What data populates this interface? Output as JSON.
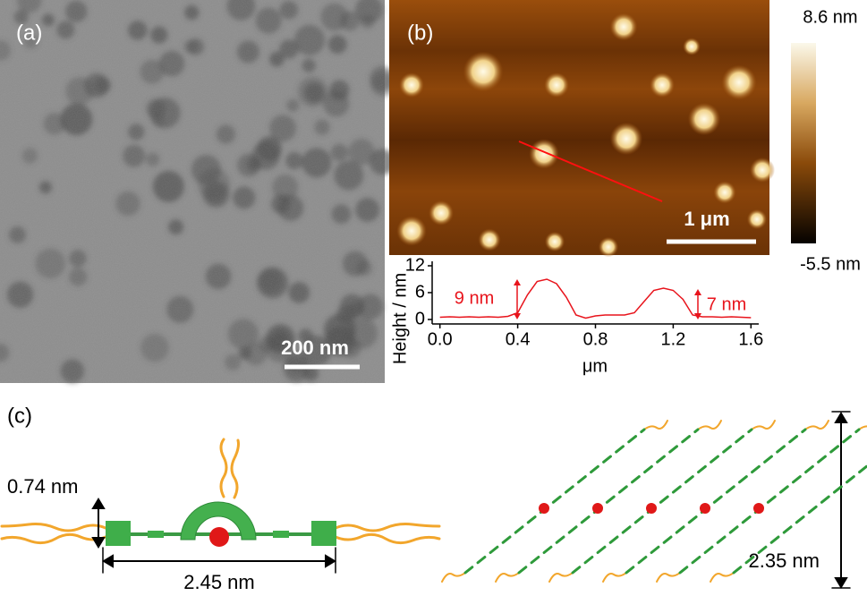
{
  "panels": {
    "a": {
      "label": "(a)",
      "scale_bar": "200 nm"
    },
    "b": {
      "label": "(b)",
      "scale_bar": "1 μm",
      "colorbar_max": "8.6 nm",
      "colorbar_min": "-5.5 nm"
    },
    "c": {
      "label": "(c)",
      "thickness": "0.74 nm",
      "width": "2.45 nm",
      "height": "2.35 nm"
    }
  },
  "chart_data": {
    "type": "line",
    "ylabel": "Height / nm",
    "xlabel": "μm",
    "x": [
      0,
      0.05,
      0.1,
      0.15,
      0.2,
      0.25,
      0.3,
      0.35,
      0.4,
      0.45,
      0.5,
      0.55,
      0.6,
      0.65,
      0.7,
      0.75,
      0.8,
      0.85,
      0.9,
      0.95,
      1.0,
      1.05,
      1.1,
      1.15,
      1.2,
      1.25,
      1.3,
      1.35,
      1.4,
      1.45,
      1.5,
      1.55,
      1.6
    ],
    "values": [
      0.5,
      0.6,
      0.5,
      0.6,
      0.5,
      0.6,
      0.5,
      0.7,
      1.5,
      5.5,
      8.5,
      9,
      8,
      5,
      1,
      0.3,
      0.8,
      1,
      1,
      1,
      1.5,
      4,
      6.5,
      7,
      6.5,
      4.5,
      1,
      0.6,
      0.6,
      0.5,
      0.6,
      0.5,
      0.4
    ],
    "color": "#e8141c",
    "xlim": [
      -0.04,
      1.64
    ],
    "ylim": [
      -1,
      13
    ],
    "xticks": [
      {
        "value": 0,
        "label": "0.0"
      },
      {
        "value": 0.4,
        "label": "0.4"
      },
      {
        "value": 0.8,
        "label": "0.8"
      },
      {
        "value": 1.2,
        "label": "1.2"
      },
      {
        "value": 1.6,
        "label": "1.6"
      }
    ],
    "yticks": [
      0,
      6,
      12
    ],
    "annotations": [
      "9 nm",
      "7 nm"
    ]
  }
}
